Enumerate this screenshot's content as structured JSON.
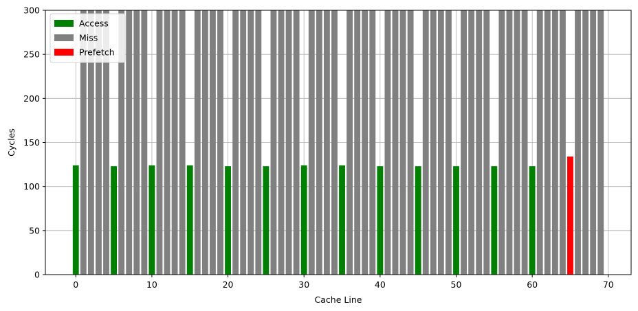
{
  "chart_data": {
    "type": "bar",
    "xlabel": "Cache Line",
    "ylabel": "Cycles",
    "xlim": [
      -4,
      73
    ],
    "ylim": [
      0,
      300
    ],
    "xticks": [
      0,
      10,
      20,
      30,
      40,
      50,
      60,
      70
    ],
    "yticks": [
      0,
      50,
      100,
      150,
      200,
      250,
      300
    ],
    "grid": true,
    "legend_position": "top-left",
    "bar_width": 0.8,
    "series": [
      {
        "name": "Access",
        "color": "#008000",
        "x": [
          0,
          5,
          10,
          15,
          20,
          25,
          30,
          35,
          40,
          45,
          50,
          55,
          60
        ],
        "values": [
          124,
          123,
          124,
          124,
          123,
          123,
          124,
          124,
          123,
          123,
          123,
          123,
          123
        ]
      },
      {
        "name": "Miss",
        "color": "#808080",
        "x": [
          1,
          2,
          3,
          4,
          6,
          7,
          8,
          9,
          11,
          12,
          13,
          14,
          16,
          17,
          18,
          19,
          21,
          22,
          23,
          24,
          26,
          27,
          28,
          29,
          31,
          32,
          33,
          34,
          36,
          37,
          38,
          39,
          41,
          42,
          43,
          44,
          46,
          47,
          48,
          49,
          51,
          52,
          53,
          54,
          56,
          57,
          58,
          59,
          61,
          62,
          63,
          64,
          66,
          67,
          68,
          69
        ],
        "values": [
          300,
          300,
          300,
          300,
          300,
          300,
          300,
          300,
          300,
          300,
          300,
          300,
          300,
          300,
          300,
          300,
          300,
          300,
          300,
          300,
          300,
          300,
          300,
          300,
          300,
          300,
          300,
          300,
          300,
          300,
          300,
          300,
          300,
          300,
          300,
          300,
          300,
          300,
          300,
          300,
          300,
          300,
          300,
          300,
          300,
          300,
          300,
          300,
          300,
          300,
          300,
          300,
          300,
          300,
          300,
          300
        ]
      },
      {
        "name": "Prefetch",
        "color": "#ff0000",
        "x": [
          65
        ],
        "values": [
          134
        ]
      }
    ]
  }
}
